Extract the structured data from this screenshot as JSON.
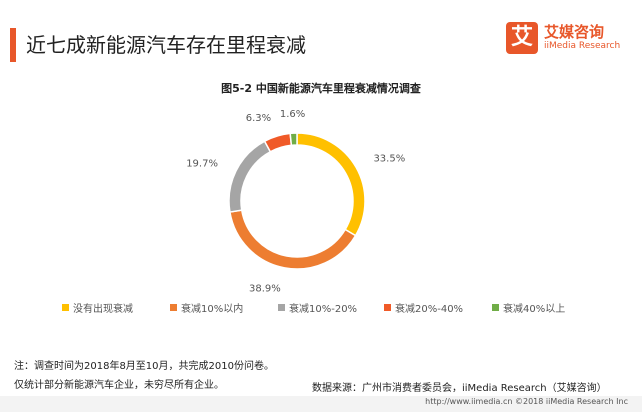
{
  "page": {
    "title": "近七成新能源汽车存在里程衰减",
    "figure_title": "图5-2 中国新能源汽车里程衰减情况调查",
    "note_line1": "注：调查时间为2018年8月至10月，共完成2010份问卷。",
    "note_line2": "仅统计部分新能源汽车企业，未穷尽所有企业。",
    "source": "数据来源：广州市消费者委员会，iiMedia Research（艾媒咨询）",
    "footer": "http://www.iimedia.cn    ©2018  iiMedia Research  Inc"
  },
  "logo": {
    "mark": "艾",
    "name": "艾媒咨询",
    "sub": "iiMedia Research"
  },
  "colors": {
    "accent": "#e8572a"
  },
  "chart_data": {
    "type": "pie",
    "style": "donut",
    "title": "图5-2 中国新能源汽车里程衰减情况调查",
    "legend_position": "bottom",
    "slices": [
      {
        "name": "没有出现衰减",
        "value": 33.5,
        "label": "33.5%",
        "color": "#ffc000"
      },
      {
        "name": "衰减10%以内",
        "value": 38.9,
        "label": "38.9%",
        "color": "#ed7d31"
      },
      {
        "name": "衰减10%-20%",
        "value": 19.7,
        "label": "19.7%",
        "color": "#a5a5a5"
      },
      {
        "name": "衰减20%-40%",
        "value": 6.3,
        "label": "6.3%",
        "color": "#f05a28"
      },
      {
        "name": "衰减40%以上",
        "value": 1.6,
        "label": "1.6%",
        "color": "#70ad47"
      }
    ]
  }
}
